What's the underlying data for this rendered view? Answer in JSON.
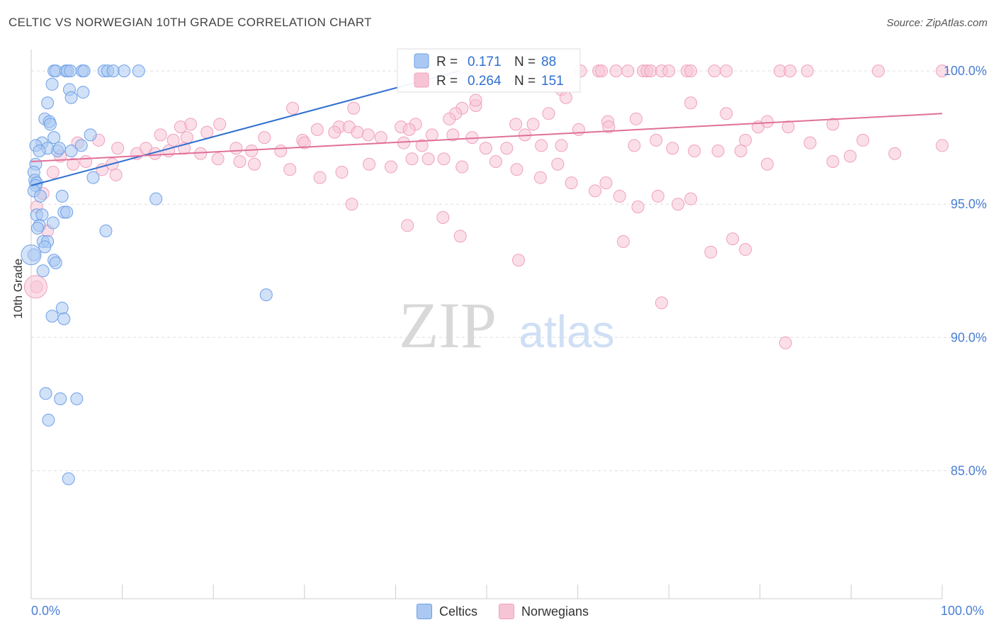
{
  "header": {
    "title": "CELTIC VS NORWEGIAN 10TH GRADE CORRELATION CHART",
    "source": "Source: ZipAtlas.com"
  },
  "watermark": {
    "zip": "ZIP",
    "atlas": "atlas"
  },
  "chart_data": {
    "type": "scatter",
    "title": "CELTIC VS NORWEGIAN 10TH GRADE CORRELATION CHART",
    "xlabel": "",
    "ylabel": "10th Grade",
    "xlim": [
      0,
      100
    ],
    "ylim": [
      80.2,
      100.8
    ],
    "x_tick_labels": [
      "0.0%",
      "100.0%"
    ],
    "y_ticks": [
      85,
      90,
      95,
      100
    ],
    "y_tick_labels": [
      "85.0%",
      "90.0%",
      "95.0%",
      "100.0%"
    ],
    "grid": true,
    "legend_position": "bottom",
    "stats_box": [
      {
        "series": "Celtics",
        "r_label": "R =",
        "r": "0.171",
        "n_label": "N =",
        "n": "88"
      },
      {
        "series": "Norwegians",
        "r_label": "R =",
        "r": "0.264",
        "n_label": "N =",
        "n": "151"
      }
    ],
    "series": [
      {
        "name": "Celtics",
        "color": "#6fa0e8",
        "fill": "#aac8f2",
        "trend_color": "#2f6fd0",
        "trend": [
          [
            0,
            95.7
          ],
          [
            47,
            100.0
          ]
        ],
        "points": [
          [
            2.5,
            100
          ],
          [
            2.7,
            100
          ],
          [
            3.8,
            100
          ],
          [
            4,
            100
          ],
          [
            4.3,
            100
          ],
          [
            5.6,
            100
          ],
          [
            5.8,
            100
          ],
          [
            8,
            100
          ],
          [
            8.4,
            100
          ],
          [
            9,
            100
          ],
          [
            10.2,
            100
          ],
          [
            11.8,
            100
          ],
          [
            2.3,
            99.5
          ],
          [
            4.2,
            99.3
          ],
          [
            5.7,
            99.2
          ],
          [
            4.4,
            99.0
          ],
          [
            1.8,
            98.8
          ],
          [
            1.5,
            98.2
          ],
          [
            2.0,
            98.1
          ],
          [
            2.1,
            98.0
          ],
          [
            6.5,
            97.6
          ],
          [
            2.5,
            97.5
          ],
          [
            1.2,
            97.3
          ],
          [
            0.5,
            97.2
          ],
          [
            1.8,
            97.1
          ],
          [
            2.9,
            97.0
          ],
          [
            3.1,
            97.1
          ],
          [
            4.4,
            97.0
          ],
          [
            5.5,
            97.2
          ],
          [
            0.9,
            97.0
          ],
          [
            0.5,
            96.5
          ],
          [
            0.3,
            96.2
          ],
          [
            6.8,
            96.0
          ],
          [
            0.4,
            95.9
          ],
          [
            0.6,
            95.8
          ],
          [
            0.5,
            95.7
          ],
          [
            0.3,
            95.5
          ],
          [
            1.0,
            95.3
          ],
          [
            3.4,
            95.3
          ],
          [
            13.7,
            95.2
          ],
          [
            3.6,
            94.7
          ],
          [
            3.9,
            94.7
          ],
          [
            0.6,
            94.6
          ],
          [
            1.2,
            94.6
          ],
          [
            0.9,
            94.2
          ],
          [
            2.4,
            94.3
          ],
          [
            0.7,
            94.1
          ],
          [
            8.2,
            94.0
          ],
          [
            1.3,
            93.6
          ],
          [
            1.8,
            93.6
          ],
          [
            1.5,
            93.4
          ],
          [
            0.3,
            93.1
          ],
          [
            2.5,
            92.9
          ],
          [
            2.7,
            92.8
          ],
          [
            1.3,
            92.5
          ],
          [
            25.8,
            91.6
          ],
          [
            3.4,
            91.1
          ],
          [
            2.3,
            90.8
          ],
          [
            3.6,
            90.7
          ],
          [
            1.6,
            87.9
          ],
          [
            3.2,
            87.7
          ],
          [
            5.0,
            87.7
          ],
          [
            1.9,
            86.9
          ],
          [
            4.1,
            84.7
          ]
        ]
      },
      {
        "name": "Norwegians",
        "color": "#f0a0bc",
        "fill": "#f7c4d6",
        "trend_color": "#e0709a",
        "trend": [
          [
            0,
            96.6
          ],
          [
            100,
            98.4
          ]
        ],
        "points": [
          [
            49.2,
            100
          ],
          [
            50.5,
            100
          ],
          [
            60.3,
            100
          ],
          [
            62.3,
            100
          ],
          [
            62.6,
            100
          ],
          [
            64.2,
            100
          ],
          [
            65.5,
            100
          ],
          [
            67.2,
            100
          ],
          [
            67.6,
            100
          ],
          [
            68,
            100
          ],
          [
            69.2,
            100
          ],
          [
            70,
            100
          ],
          [
            72,
            100
          ],
          [
            72.4,
            100
          ],
          [
            75,
            100
          ],
          [
            76.3,
            100
          ],
          [
            82.2,
            100
          ],
          [
            83.3,
            100
          ],
          [
            85.2,
            100
          ],
          [
            93,
            100
          ],
          [
            100,
            100
          ],
          [
            58.2,
            99.3
          ],
          [
            58.7,
            99.0
          ],
          [
            48.8,
            98.7
          ],
          [
            48.8,
            98.9
          ],
          [
            47.3,
            98.6
          ],
          [
            28.7,
            98.6
          ],
          [
            35.4,
            98.6
          ],
          [
            46.6,
            98.4
          ],
          [
            45.9,
            98.2
          ],
          [
            56.8,
            98.4
          ],
          [
            72.4,
            98.8
          ],
          [
            66.4,
            98.2
          ],
          [
            76.3,
            98.4
          ],
          [
            79.8,
            97.9
          ],
          [
            88.0,
            98.0
          ],
          [
            83.1,
            97.9
          ],
          [
            78.4,
            97.4
          ],
          [
            80.8,
            98.1
          ],
          [
            63.3,
            98.1
          ],
          [
            55.1,
            98.0
          ],
          [
            53.2,
            98.0
          ],
          [
            42.2,
            98.0
          ],
          [
            40.6,
            97.9
          ],
          [
            41.5,
            97.8
          ],
          [
            33.8,
            97.9
          ],
          [
            34.9,
            97.9
          ],
          [
            20.7,
            98.0
          ],
          [
            17.5,
            98.0
          ],
          [
            16.4,
            97.9
          ],
          [
            14.2,
            97.6
          ],
          [
            15.6,
            97.4
          ],
          [
            17.1,
            97.5
          ],
          [
            19.3,
            97.7
          ],
          [
            22.5,
            97.1
          ],
          [
            24.2,
            97.0
          ],
          [
            25.6,
            97.5
          ],
          [
            27.4,
            97.0
          ],
          [
            29.8,
            97.4
          ],
          [
            30.0,
            97.3
          ],
          [
            31.4,
            97.8
          ],
          [
            33.3,
            97.7
          ],
          [
            35.8,
            97.7
          ],
          [
            37.0,
            97.6
          ],
          [
            38.4,
            97.5
          ],
          [
            40.9,
            97.3
          ],
          [
            42.9,
            97.2
          ],
          [
            44.0,
            97.6
          ],
          [
            46.3,
            97.6
          ],
          [
            48.4,
            97.5
          ],
          [
            49.9,
            97.1
          ],
          [
            52.2,
            97.1
          ],
          [
            54.2,
            97.6
          ],
          [
            56.0,
            97.2
          ],
          [
            58.2,
            97.2
          ],
          [
            60.1,
            97.8
          ],
          [
            63.4,
            97.9
          ],
          [
            66.2,
            97.2
          ],
          [
            68.6,
            97.4
          ],
          [
            70.4,
            97.1
          ],
          [
            72.8,
            97.0
          ],
          [
            75.4,
            97.0
          ],
          [
            77.9,
            97.0
          ],
          [
            80.8,
            96.5
          ],
          [
            85.5,
            97.3
          ],
          [
            88.0,
            96.6
          ],
          [
            89.9,
            96.8
          ],
          [
            91.3,
            97.4
          ],
          [
            94.8,
            96.9
          ],
          [
            100,
            97.2
          ],
          [
            5.1,
            97.3
          ],
          [
            7.4,
            97.4
          ],
          [
            9.5,
            97.1
          ],
          [
            11.6,
            96.9
          ],
          [
            12.6,
            97.1
          ],
          [
            13.6,
            96.9
          ],
          [
            15.1,
            97.0
          ],
          [
            16.8,
            97.1
          ],
          [
            18.6,
            96.9
          ],
          [
            20.5,
            96.7
          ],
          [
            22.9,
            96.6
          ],
          [
            24.5,
            96.5
          ],
          [
            28.4,
            96.3
          ],
          [
            31.7,
            96.0
          ],
          [
            34.1,
            96.2
          ],
          [
            37.1,
            96.5
          ],
          [
            39.5,
            96.4
          ],
          [
            41.8,
            96.7
          ],
          [
            43.6,
            96.7
          ],
          [
            45.3,
            96.7
          ],
          [
            47.3,
            96.4
          ],
          [
            51.0,
            96.6
          ],
          [
            53.3,
            96.3
          ],
          [
            55.9,
            96.0
          ],
          [
            57.8,
            96.5
          ],
          [
            59.3,
            95.8
          ],
          [
            61.9,
            95.5
          ],
          [
            63.1,
            95.8
          ],
          [
            64.6,
            95.3
          ],
          [
            66.6,
            94.9
          ],
          [
            68.8,
            95.3
          ],
          [
            71.0,
            95.0
          ],
          [
            72.4,
            95.2
          ],
          [
            74.6,
            93.2
          ],
          [
            77.0,
            93.7
          ],
          [
            3.2,
            96.8
          ],
          [
            4.6,
            96.5
          ],
          [
            6.0,
            96.6
          ],
          [
            7.8,
            96.3
          ],
          [
            8.9,
            96.5
          ],
          [
            9.3,
            96.1
          ],
          [
            2.4,
            96.2
          ],
          [
            1.3,
            95.4
          ],
          [
            0.6,
            94.9
          ],
          [
            1.8,
            94.0
          ],
          [
            0.6,
            91.9
          ],
          [
            35.2,
            95.0
          ],
          [
            41.3,
            94.2
          ],
          [
            45.2,
            94.5
          ],
          [
            47.1,
            93.8
          ],
          [
            53.5,
            92.9
          ],
          [
            65.0,
            93.6
          ],
          [
            78.4,
            93.3
          ],
          [
            69.2,
            91.3
          ],
          [
            82.8,
            89.8
          ]
        ]
      }
    ]
  }
}
